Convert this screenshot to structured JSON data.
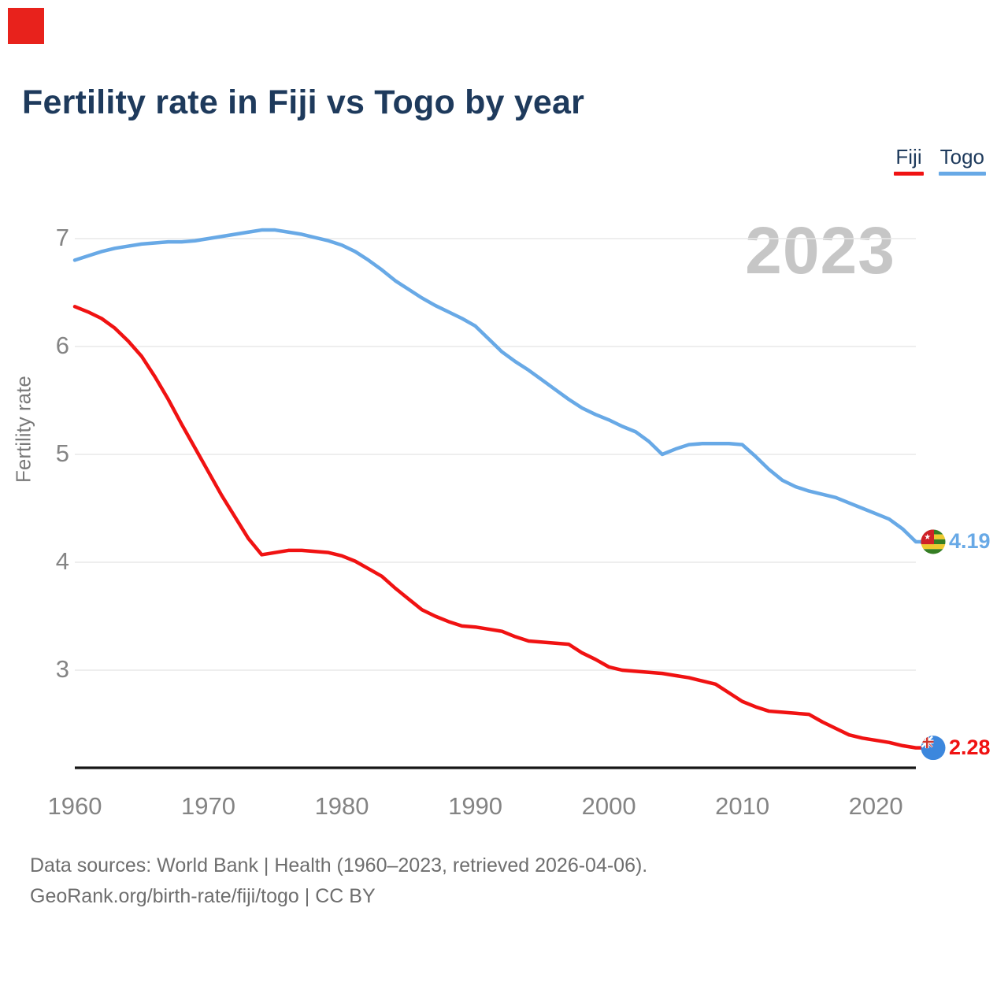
{
  "corner_marker": {
    "color": "#e8221c"
  },
  "header": {
    "title": "Fertility rate in Fiji vs Togo by year"
  },
  "legend": [
    {
      "label": "Fiji",
      "color": "#f01212"
    },
    {
      "label": "Togo",
      "color": "#68a9e6"
    }
  ],
  "watermark": "2023",
  "chart_data": {
    "type": "line",
    "title": "Fertility rate in Fiji vs Togo by year",
    "xlabel": "",
    "ylabel": "Fertility rate",
    "x_range": [
      1960,
      2023
    ],
    "ylim": [
      2.1,
      7.2
    ],
    "x_ticks": [
      1960,
      1970,
      1980,
      1990,
      2000,
      2010,
      2020
    ],
    "y_ticks": [
      7,
      6,
      5,
      4,
      3
    ],
    "grid": true,
    "legend_position": "top-right",
    "x": [
      1960,
      1961,
      1962,
      1963,
      1964,
      1965,
      1966,
      1967,
      1968,
      1969,
      1970,
      1971,
      1972,
      1973,
      1974,
      1975,
      1976,
      1977,
      1978,
      1979,
      1980,
      1981,
      1982,
      1983,
      1984,
      1985,
      1986,
      1987,
      1988,
      1989,
      1990,
      1991,
      1992,
      1993,
      1994,
      1995,
      1996,
      1997,
      1998,
      1999,
      2000,
      2001,
      2002,
      2003,
      2004,
      2005,
      2006,
      2007,
      2008,
      2009,
      2010,
      2011,
      2012,
      2013,
      2014,
      2015,
      2016,
      2017,
      2018,
      2019,
      2020,
      2021,
      2022,
      2023
    ],
    "series": [
      {
        "name": "Fiji",
        "color": "#f01212",
        "end_label": "2.28",
        "flag": "fiji",
        "values": [
          6.37,
          6.32,
          6.26,
          6.17,
          6.05,
          5.91,
          5.72,
          5.51,
          5.28,
          5.06,
          4.84,
          4.62,
          4.42,
          4.22,
          4.07,
          4.09,
          4.11,
          4.11,
          4.1,
          4.09,
          4.06,
          4.01,
          3.94,
          3.87,
          3.76,
          3.66,
          3.56,
          3.5,
          3.45,
          3.41,
          3.4,
          3.38,
          3.36,
          3.31,
          3.27,
          3.26,
          3.25,
          3.24,
          3.16,
          3.1,
          3.03,
          3.0,
          2.99,
          2.98,
          2.97,
          2.95,
          2.93,
          2.9,
          2.87,
          2.79,
          2.71,
          2.66,
          2.62,
          2.61,
          2.6,
          2.59,
          2.52,
          2.46,
          2.4,
          2.37,
          2.35,
          2.33,
          2.3,
          2.28
        ]
      },
      {
        "name": "Togo",
        "color": "#68a9e6",
        "end_label": "4.19",
        "flag": "togo",
        "values": [
          6.8,
          6.84,
          6.88,
          6.91,
          6.93,
          6.95,
          6.96,
          6.97,
          6.97,
          6.98,
          7.0,
          7.02,
          7.04,
          7.06,
          7.08,
          7.08,
          7.06,
          7.04,
          7.01,
          6.98,
          6.94,
          6.88,
          6.8,
          6.71,
          6.61,
          6.53,
          6.45,
          6.38,
          6.32,
          6.26,
          6.19,
          6.07,
          5.95,
          5.86,
          5.78,
          5.69,
          5.6,
          5.51,
          5.43,
          5.37,
          5.32,
          5.26,
          5.21,
          5.12,
          5.0,
          5.05,
          5.09,
          5.1,
          5.1,
          5.1,
          5.09,
          4.98,
          4.86,
          4.76,
          4.7,
          4.66,
          4.63,
          4.6,
          4.55,
          4.5,
          4.45,
          4.4,
          4.31,
          4.19
        ]
      }
    ]
  },
  "footer": {
    "line1": "Data sources: World Bank | Health (1960–2023, retrieved 2026-04-06).",
    "line2": "GeoRank.org/birth-rate/fiji/togo | CC BY"
  }
}
